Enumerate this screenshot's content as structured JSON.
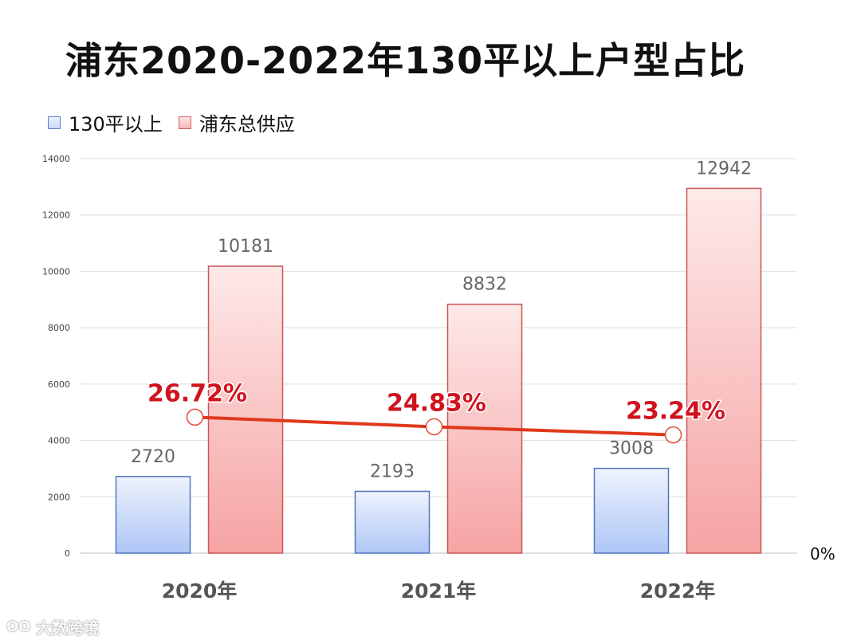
{
  "title": "浦东2020-2022年130平以上户型占比",
  "legend": [
    {
      "label": "130平以上",
      "color": "#b9cff8"
    },
    {
      "label": "浦东总供应",
      "color": "#f6a9a9"
    }
  ],
  "watermark": {
    "logo": "OO",
    "text": "大数跨境"
  },
  "chart_data": {
    "type": "bar",
    "title": "浦东2020-2022年130平以上户型占比",
    "categories": [
      "2020年",
      "2021年",
      "2022年"
    ],
    "series": [
      {
        "name": "130平以上",
        "values": [
          2720,
          2193,
          3008
        ],
        "labels": [
          "2720",
          "2193",
          "3008"
        ]
      },
      {
        "name": "浦东总供应",
        "values": [
          10181,
          8832,
          12942
        ],
        "labels": [
          "10181",
          "8832",
          "12942"
        ]
      }
    ],
    "line_series": {
      "values": [
        26.72,
        24.83,
        23.24
      ],
      "labels": [
        "26.72%",
        "24.83%",
        "23.24%"
      ],
      "color": "#e0381c"
    },
    "ylim": [
      0,
      14000
    ],
    "yticks": [
      "0",
      "2000",
      "4000",
      "6000",
      "8000",
      "10000",
      "12000",
      "14000"
    ],
    "y2_tick_label": "0%",
    "grid": true,
    "legend_position": "top-left",
    "colors": {
      "bar1": "#b9cff8",
      "bar2": "#f6a9a9",
      "line": "#e0381c",
      "pct_label": "#d0131f"
    }
  }
}
